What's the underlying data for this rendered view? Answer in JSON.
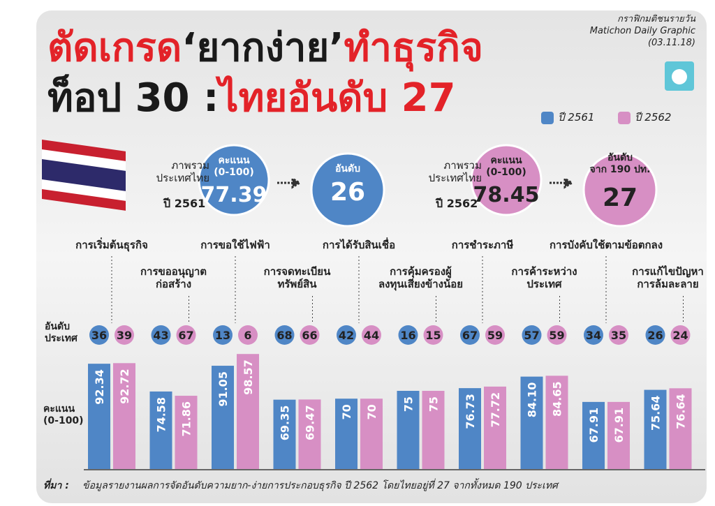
{
  "header": {
    "title_lines": [
      [
        {
          "text": "ตัดเกรด",
          "color": "#e32228"
        },
        {
          "text": "‘ยากง่าย’",
          "color": "#1a1a1a"
        },
        {
          "text": "ทำธุรกิจ",
          "color": "#e32228"
        }
      ],
      [
        {
          "text": "ท็อป 30 :",
          "color": "#1a1a1a"
        },
        {
          "text": "ไทยอันดับ 27",
          "color": "#e32228"
        }
      ]
    ],
    "credit": [
      "กราฟิกมติชนรายวัน",
      "Matichon Daily Graphic",
      "(03.11.18)"
    ]
  },
  "summary": [
    {
      "label": "ภาพรวม\nประเทศไทย",
      "year": "ปี 2561",
      "score_label": "คะแนน\n(0-100)",
      "score": 77.39,
      "rank_label": "อันดับ",
      "rank": 26,
      "color": "#4f86c6"
    },
    {
      "label": "ภาพรวม\nประเทศไทย",
      "year": "ปี 2562",
      "score_label": "คะแนน\n(0-100)",
      "score": 78.45,
      "rank_label": "อันดับ\nจาก 190 ปท.",
      "rank": 27,
      "color": "#d78fc4"
    }
  ],
  "chart_data": {
    "type": "bar",
    "categories": [
      "การเริ่มต้นธุรกิจ",
      "การขออนุญาต\nก่อสร้าง",
      "การขอใช้ไฟฟ้า",
      "การจดทะเบียน\nทรัพย์สิน",
      "การได้รับสินเชื่อ",
      "การคุ้มครองผู้\nลงทุนเสียงข้างน้อย",
      "การชำระภาษี",
      "การค้าระหว่าง\nประเทศ",
      "การบังคับใช้ตามข้อตกลง",
      "การแก้ไขปัญหา\nการล้มละลาย"
    ],
    "series": [
      {
        "name": "ปี 2561",
        "color": "#4f86c6",
        "values": [
          92.34,
          74.58,
          91.05,
          69.35,
          70,
          75,
          76.73,
          84.1,
          67.91,
          75.64
        ],
        "value_labels": [
          "92.34",
          "74.58",
          "91.05",
          "69.35",
          "70",
          "75",
          "76.73",
          "84.10",
          "67.91",
          "75.64"
        ],
        "ranks": [
          36,
          43,
          13,
          68,
          42,
          16,
          67,
          57,
          34,
          26
        ]
      },
      {
        "name": "ปี 2562",
        "color": "#d78fc4",
        "values": [
          92.72,
          71.86,
          98.57,
          69.47,
          70,
          75,
          77.72,
          84.65,
          67.91,
          76.64
        ],
        "value_labels": [
          "92.72",
          "71.86",
          "98.57",
          "69.47",
          "70",
          "75",
          "77.72",
          "84.65",
          "67.91",
          "76.64"
        ],
        "ranks": [
          39,
          67,
          6,
          66,
          44,
          15,
          59,
          59,
          35,
          24
        ]
      }
    ],
    "ylim": [
      25,
      100
    ],
    "rank_label": "อันดับ\nประเทศ",
    "score_label": "คะแนน\n(0-100)"
  },
  "source": {
    "label": "ที่มา :",
    "text": "ข้อมูลรายงานผลการจัดอันดับความยาก-ง่ายการประกอบธุรกิจ ปี 2562 โดยไทยอยู่ที่ 27 จากทั้งหมด 190 ประเทศ"
  }
}
